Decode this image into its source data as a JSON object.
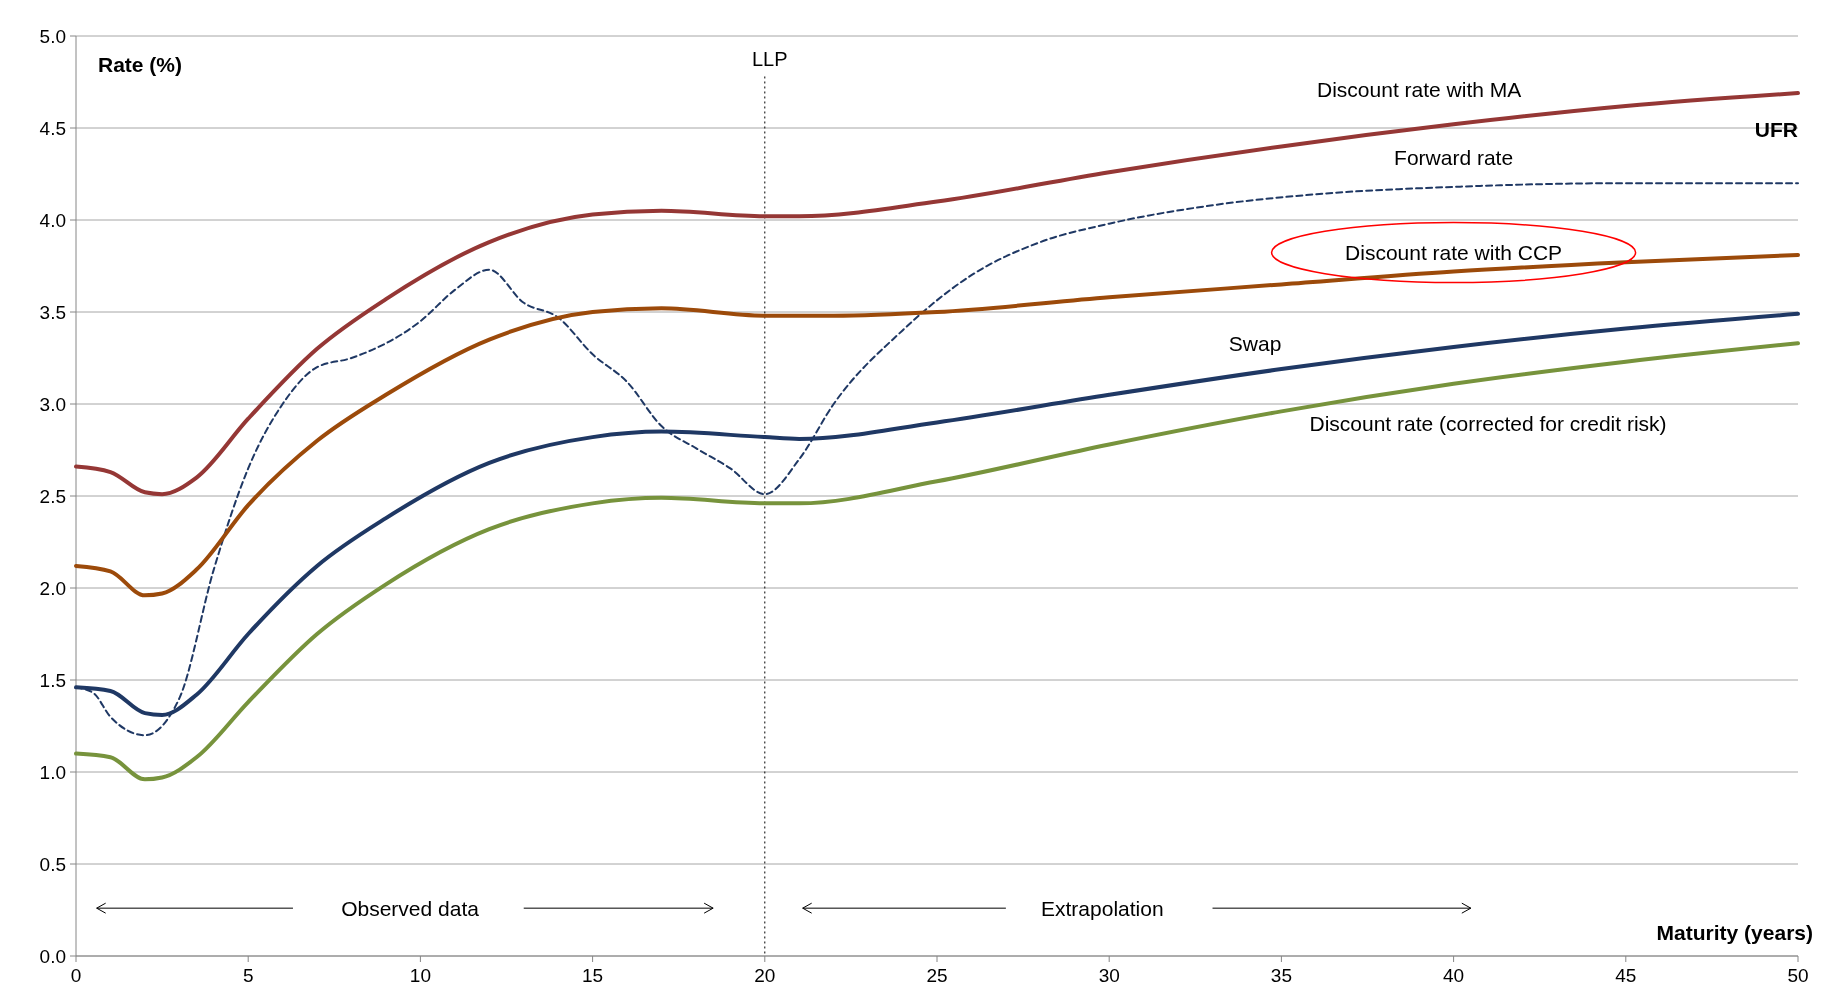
{
  "chart_data": {
    "type": "line",
    "xlabel": "Maturity (years)",
    "ylabel": "Rate (%)",
    "xlim": [
      0,
      50
    ],
    "xticks": [
      0,
      5,
      10,
      15,
      20,
      25,
      30,
      35,
      40,
      45,
      50
    ],
    "ylim": [
      0,
      5
    ],
    "yticks": [
      {
        "value": 0,
        "label": "0.0"
      },
      {
        "value": 0.5,
        "label": "0.5"
      },
      {
        "value": 1,
        "label": "1.0"
      },
      {
        "value": 1.5,
        "label": "1.5"
      },
      {
        "value": 2,
        "label": "2.0"
      },
      {
        "value": 2.5,
        "label": "2.5"
      },
      {
        "value": 3,
        "label": "3.0"
      },
      {
        "value": 3.5,
        "label": "3.5"
      },
      {
        "value": 4,
        "label": "4.0"
      },
      {
        "value": 4.5,
        "label": "4.5"
      },
      {
        "value": 5,
        "label": "5.0"
      }
    ],
    "grid": "y",
    "marker": "none",
    "series": [
      {
        "name": "Discount rate with MA",
        "color": "#953735",
        "x": [
          0,
          1,
          2,
          2.5,
          3.5,
          5,
          7,
          9,
          12,
          15,
          17,
          20,
          21,
          25,
          30,
          35,
          40,
          45,
          50
        ],
        "values": [
          2.66,
          2.63,
          2.52,
          2.51,
          2.6,
          2.92,
          3.3,
          3.57,
          3.88,
          4.03,
          4.05,
          4.02,
          4.02,
          4.1,
          4.26,
          4.4,
          4.52,
          4.62,
          4.69
        ]
      },
      {
        "name": "Forward rate",
        "color": "#1f3864",
        "line_style": "dashed",
        "x": [
          0,
          0.5,
          1,
          2,
          3,
          4,
          5,
          6,
          7,
          8,
          10,
          11,
          12,
          13,
          14,
          15,
          16,
          17,
          18,
          19,
          20,
          21,
          22,
          24,
          26,
          28,
          30,
          33,
          36,
          40,
          45,
          50
        ],
        "values": [
          1.46,
          1.43,
          1.3,
          1.2,
          1.4,
          2.1,
          2.65,
          3.0,
          3.2,
          3.25,
          3.45,
          3.62,
          3.73,
          3.55,
          3.47,
          3.27,
          3.12,
          2.88,
          2.76,
          2.65,
          2.51,
          2.7,
          3.0,
          3.4,
          3.7,
          3.88,
          3.98,
          4.08,
          4.14,
          4.18,
          4.2,
          4.2
        ]
      },
      {
        "name": "Discount rate with CCP",
        "color": "#9c4a0a",
        "x": [
          0,
          1,
          2,
          2.5,
          3.5,
          5,
          7,
          9,
          12,
          15,
          17,
          20,
          22,
          25,
          30,
          35,
          40,
          45,
          50
        ],
        "values": [
          2.12,
          2.09,
          1.96,
          1.97,
          2.1,
          2.45,
          2.8,
          3.05,
          3.35,
          3.5,
          3.52,
          3.48,
          3.48,
          3.5,
          3.58,
          3.65,
          3.72,
          3.77,
          3.81
        ]
      },
      {
        "name": "Swap",
        "color": "#1f3864",
        "x": [
          0,
          1,
          2,
          2.5,
          3.5,
          5,
          7,
          9,
          12,
          15,
          17,
          20,
          21,
          25,
          30,
          35,
          40,
          45,
          50
        ],
        "values": [
          1.46,
          1.44,
          1.32,
          1.31,
          1.42,
          1.75,
          2.12,
          2.38,
          2.68,
          2.82,
          2.85,
          2.82,
          2.81,
          2.9,
          3.05,
          3.19,
          3.31,
          3.41,
          3.49
        ]
      },
      {
        "name": "Discount rate (corrected for credit risk)",
        "color": "#77933c",
        "x": [
          0,
          1,
          2,
          2.5,
          3.5,
          5,
          7,
          9,
          12,
          15,
          17,
          20,
          21,
          25,
          30,
          35,
          40,
          45,
          50
        ],
        "values": [
          1.1,
          1.08,
          0.96,
          0.97,
          1.08,
          1.38,
          1.75,
          2.02,
          2.32,
          2.46,
          2.49,
          2.46,
          2.46,
          2.58,
          2.78,
          2.96,
          3.11,
          3.23,
          3.33
        ]
      }
    ],
    "ref_lines": [
      {
        "axis": "x",
        "value": 20,
        "label": "LLP",
        "line_style": "dotted",
        "color": "#000000"
      }
    ],
    "annotations": [
      "Observed data",
      "Extrapolation",
      "UFR"
    ]
  }
}
